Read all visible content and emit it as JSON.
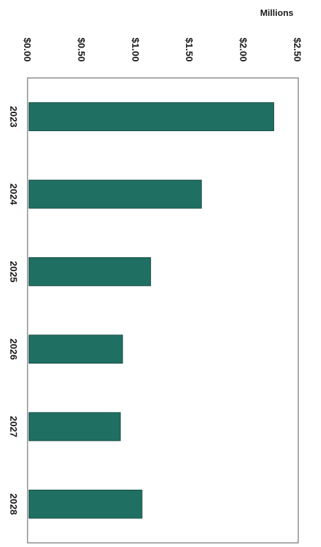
{
  "chart_data": {
    "type": "bar",
    "orientation": "rotated-90-clockwise",
    "unit_label": "Millions",
    "categories": [
      "2023",
      "2024",
      "2025",
      "2026",
      "2027",
      "2028"
    ],
    "values": [
      2.28,
      1.61,
      1.14,
      0.88,
      0.86,
      1.06
    ],
    "tick_labels": [
      "$0.00",
      "$0.50",
      "$1.00",
      "$1.50",
      "$2.00",
      "$2.50"
    ],
    "ylim": [
      0,
      2.5
    ],
    "grid": false,
    "bar_color": "#1f6f63",
    "title": "",
    "xlabel": "",
    "ylabel": ""
  }
}
